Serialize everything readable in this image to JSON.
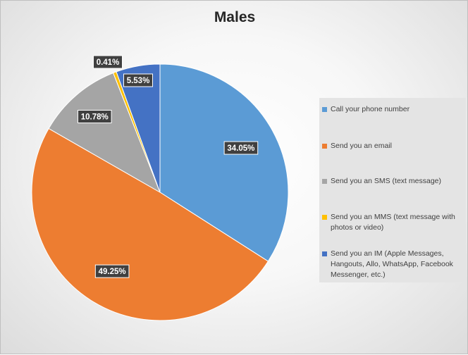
{
  "chart_data": {
    "type": "pie",
    "title": "Males",
    "categories": [
      "Call your phone number",
      "Send you an email",
      "Send you an SMS (text message)",
      "Send you an MMS (text message with photos or video)",
      "Send you an IM (Apple Messages, Hangouts, Allo, WhatsApp, Facebook Messenger, etc.)"
    ],
    "values": [
      34.05,
      49.25,
      10.78,
      0.41,
      5.53
    ],
    "data_labels": [
      "34.05%",
      "49.25%",
      "10.78%",
      "0.41%",
      "5.53%"
    ],
    "colors": [
      "#5b9bd5",
      "#ed7d31",
      "#a5a5a5",
      "#ffc000",
      "#4472c4"
    ],
    "start_angle_deg": 0,
    "direction": "clockwise",
    "legend_position": "right"
  }
}
